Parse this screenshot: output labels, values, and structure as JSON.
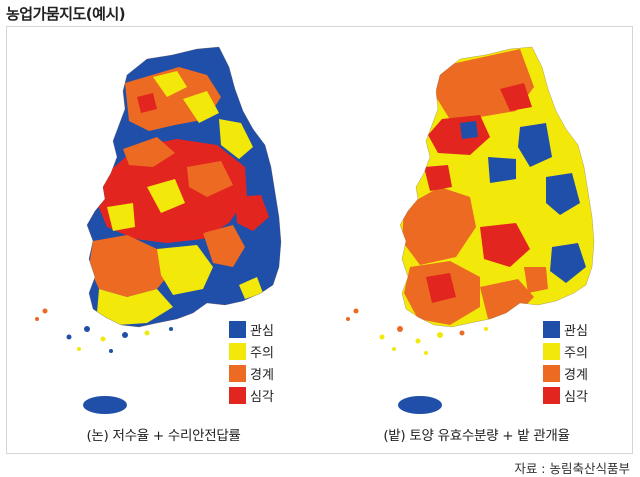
{
  "title": "농업가뭄지도(예시)",
  "colors": {
    "관심": "#1f4fa8",
    "주의": "#f2e90b",
    "경계": "#ec6a21",
    "심각": "#e3251f"
  },
  "panels": [
    {
      "caption": "(논) 저수율 + 수리안전답률",
      "legend": [
        {
          "label": "관심",
          "color": "#1f4fa8"
        },
        {
          "label": "주의",
          "color": "#f2e90b"
        },
        {
          "label": "경계",
          "color": "#ec6a21"
        },
        {
          "label": "심각",
          "color": "#e3251f"
        }
      ]
    },
    {
      "caption": "(밭) 토양 유효수분량 + 밭 관개율",
      "legend": [
        {
          "label": "관심",
          "color": "#1f4fa8"
        },
        {
          "label": "주의",
          "color": "#f2e90b"
        },
        {
          "label": "경계",
          "color": "#ec6a21"
        },
        {
          "label": "심각",
          "color": "#e3251f"
        }
      ]
    }
  ],
  "source": "자료 : 농림축산식품부"
}
